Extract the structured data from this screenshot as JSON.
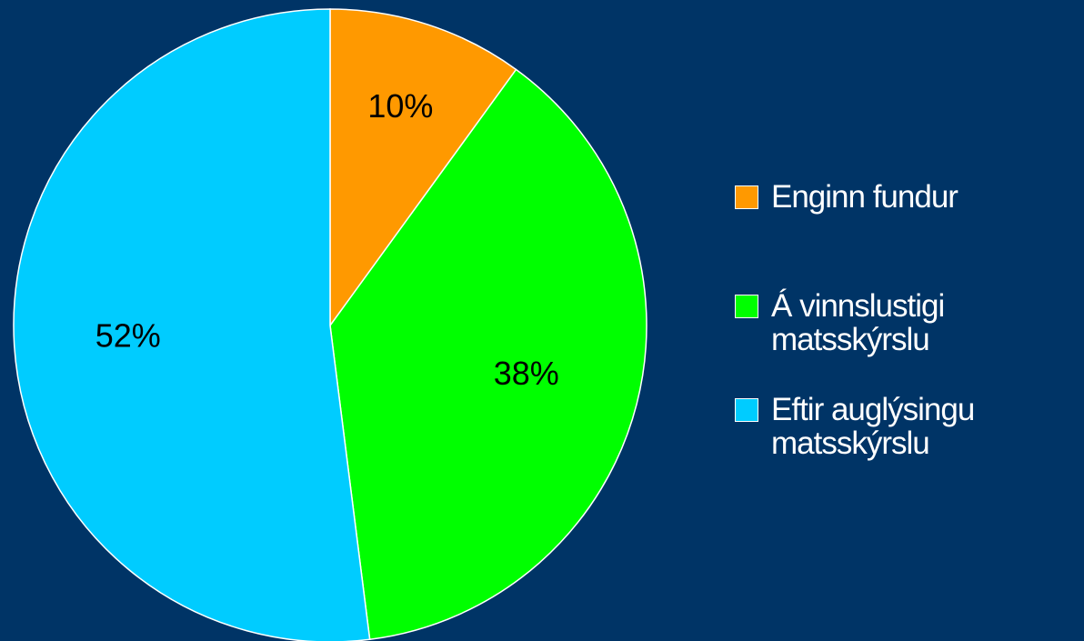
{
  "chart_data": {
    "type": "pie",
    "categories": [
      "Enginn fundur",
      "Á vinnslustigi matsskýrslu",
      "Eftir auglýsingu matsskýrslu"
    ],
    "values": [
      10,
      38,
      52
    ],
    "value_labels": [
      "10%",
      "38%",
      "52%"
    ],
    "colors": [
      "#ff9900",
      "#00ff00",
      "#00ccff"
    ],
    "legend": "right"
  }
}
